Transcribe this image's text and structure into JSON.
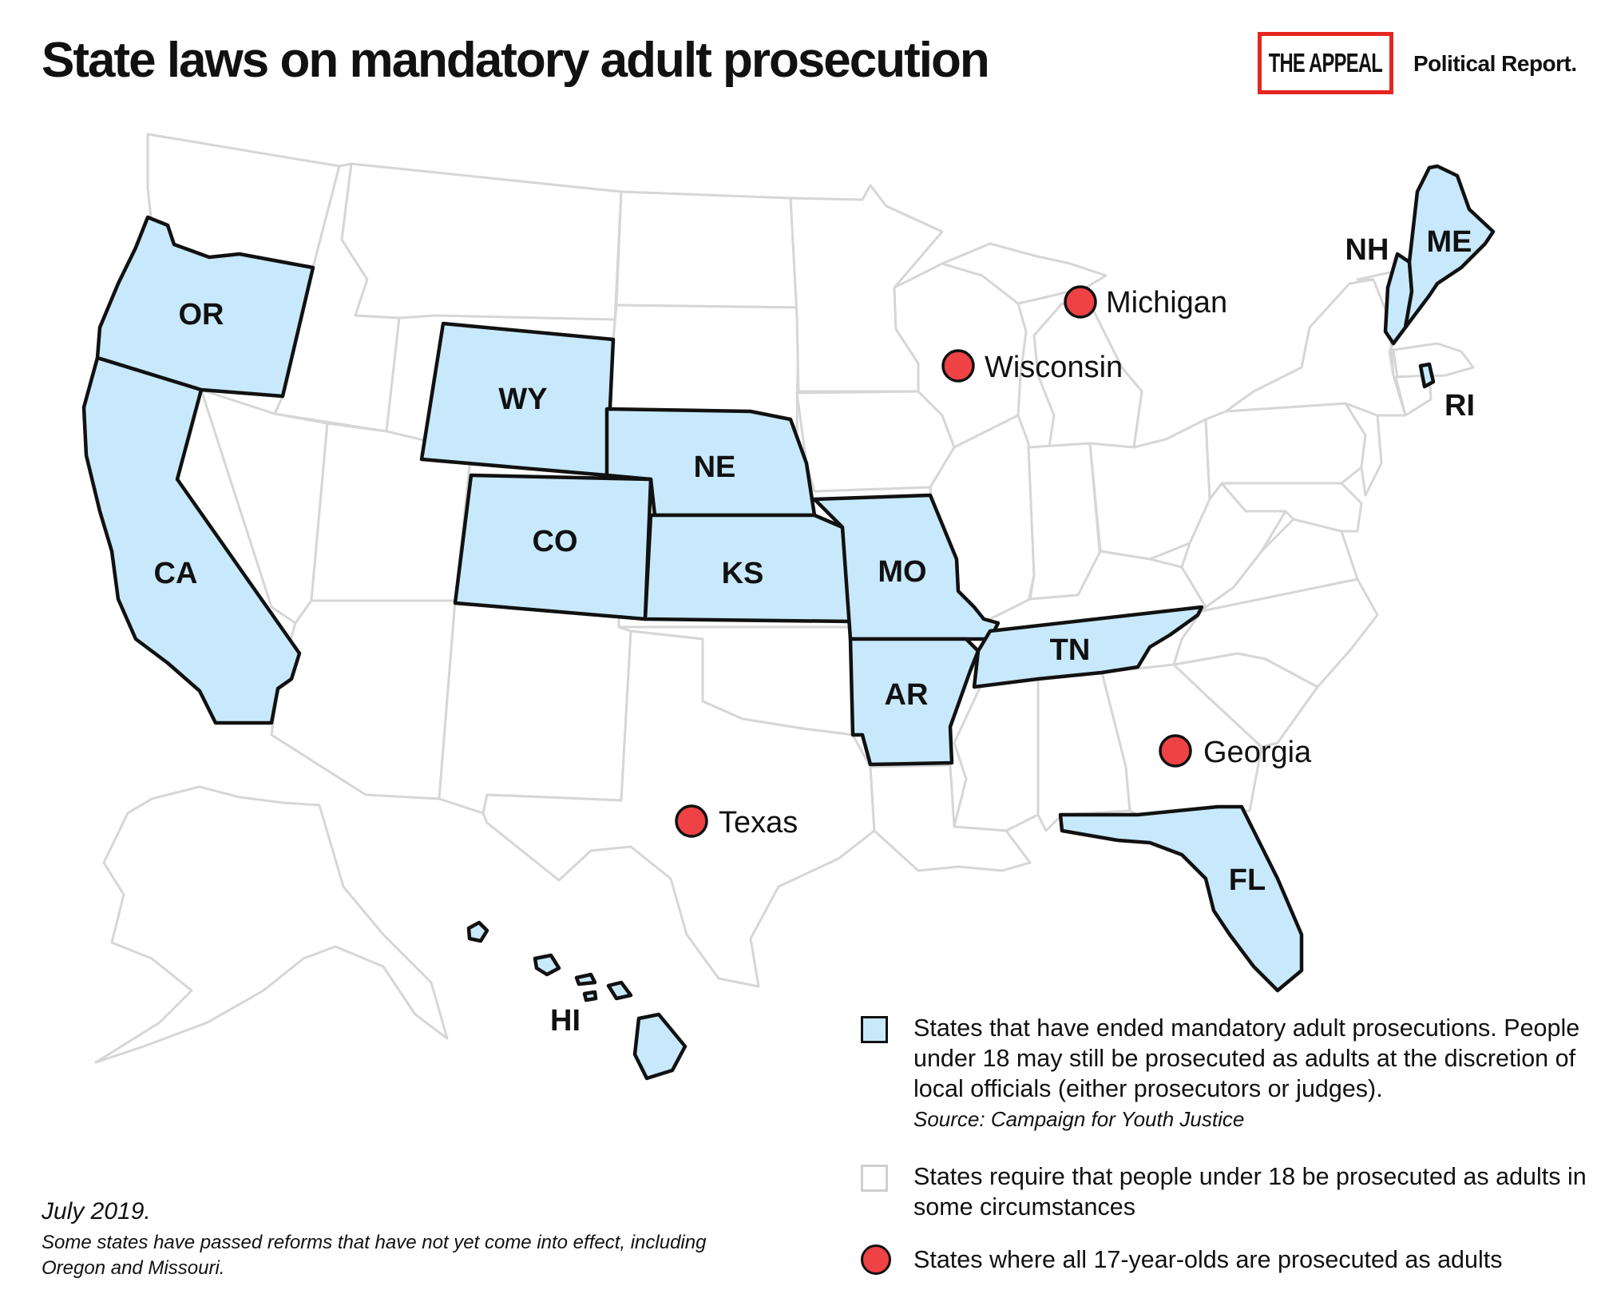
{
  "title": "State laws on mandatory adult prosecution",
  "logo": {
    "box_text": "THE APPEAL",
    "sub_text": "Political Report."
  },
  "colors": {
    "ended": "#c8e9fb",
    "required": "#ffffff",
    "seventeen": "#ee4245",
    "brand_red": "#e5261f"
  },
  "states_ended_mandatory": [
    "OR",
    "CA",
    "WY",
    "NE",
    "CO",
    "KS",
    "MO",
    "AR",
    "TN",
    "FL",
    "NH",
    "ME",
    "RI",
    "HI"
  ],
  "states_all_17_adults": [
    "Michigan",
    "Wisconsin",
    "Georgia",
    "Texas"
  ],
  "legend": [
    {
      "symbol": "blue-square",
      "text": "States that have ended mandatory adult prosecutions. People under 18 may still be prosecuted as adults at the discretion of local officials (either prosecutors or judges).",
      "source": "Source: Campaign for Youth Justice"
    },
    {
      "symbol": "white-square",
      "text": "States require that people under 18 be prosecuted as adults in some circumstances"
    },
    {
      "symbol": "red-dot",
      "text": "States where all 17-year-olds are prosecuted as adults"
    }
  ],
  "date": "July 2019.",
  "note": "Some states have passed reforms that have not yet come into effect, including Oregon and Missouri."
}
